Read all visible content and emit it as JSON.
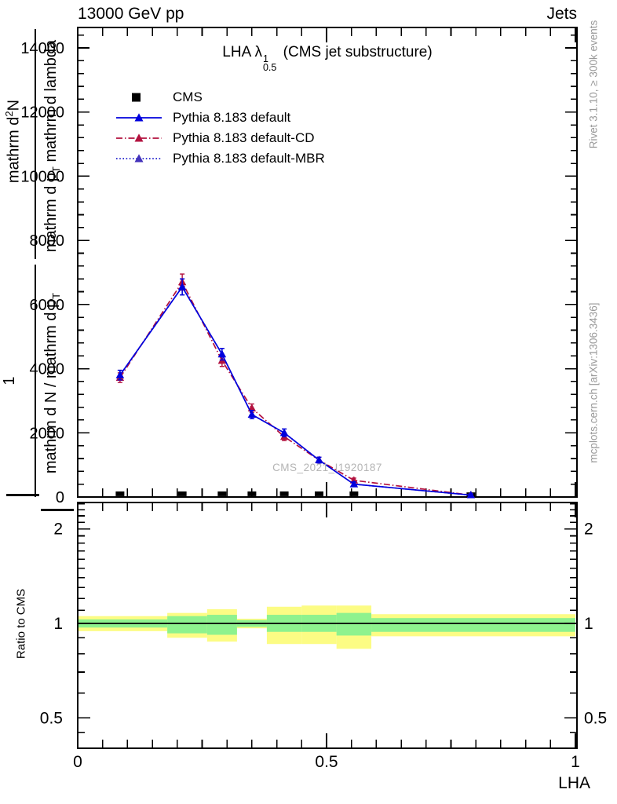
{
  "header": {
    "left": "13000 GeV pp",
    "right": "Jets"
  },
  "plot": {
    "title": {
      "prefix": "LHA λ",
      "sup": "1",
      "sub": "0.5",
      "suffix": "(CMS jet substructure)"
    },
    "watermark": "CMS_2021_I1920187",
    "side_top": "Rivet 3.1.10, ≥ 300k events",
    "side_bottom": "mcplots.cern.ch [arXiv:1306.3436]",
    "xlabel": "LHA",
    "ratio_ylabel": "Ratio to CMS",
    "ylabel": {
      "num1": "1",
      "den1_main": "mathrm d N / mathrm d p",
      "den1_sub": "T",
      "num2_pre": "mathrm d",
      "num2_sup": "2",
      "num2_post": "N",
      "den2_p1": "mathrm d p",
      "den2_sub": "T",
      "den2_p2": " mathrm d lambda"
    }
  },
  "chart_data": [
    {
      "type": "line",
      "title": "LHA lambda^1_0.5 (CMS jet substructure)",
      "xlabel": "LHA",
      "xlim": [
        0,
        1
      ],
      "ylim": [
        0,
        14640
      ],
      "yticks": [
        0,
        2000,
        4000,
        6000,
        8000,
        10000,
        12000,
        14000
      ],
      "y_minor_step": 400,
      "xticks": [
        0,
        0.5,
        1
      ],
      "x_minor_step": 0.05,
      "grid": false,
      "legend_position": "upper-left",
      "x": [
        0.085,
        0.21,
        0.29,
        0.35,
        0.415,
        0.485,
        0.555,
        0.79
      ],
      "series": [
        {
          "name": "CMS",
          "marker": "square",
          "color": "#000000",
          "values": [
            100,
            100,
            100,
            100,
            100,
            100,
            100,
            70
          ]
        },
        {
          "name": "Pythia 8.183 default",
          "marker": "triangle",
          "color": "#0000dd",
          "line_color": "#0000dd",
          "style": "solid",
          "values": [
            3800,
            6550,
            4450,
            2570,
            2000,
            1150,
            400,
            60
          ],
          "errors": [
            150,
            250,
            180,
            130,
            120,
            90,
            70,
            40
          ]
        },
        {
          "name": "Pythia 8.183 default-CD",
          "marker": "triangle",
          "color": "#b3123f",
          "line_color": "#b3123f",
          "style": "dashdot",
          "values": [
            3720,
            6700,
            4250,
            2770,
            1880,
            1150,
            520,
            60
          ],
          "errors": [
            150,
            250,
            180,
            130,
            120,
            90,
            70,
            40
          ]
        },
        {
          "name": "Pythia 8.183 default-MBR",
          "marker": "triangle",
          "color": "#4433bb",
          "line_color": "#2222cc",
          "style": "dotted",
          "values": [
            3800,
            6550,
            4450,
            2570,
            2000,
            1150,
            400,
            60
          ],
          "errors": [
            150,
            250,
            180,
            130,
            120,
            90,
            70,
            40
          ]
        }
      ]
    },
    {
      "type": "ratio-band",
      "ylabel": "Ratio to CMS",
      "yscale": "log",
      "ylim": [
        0.4,
        2.43
      ],
      "yticks": [
        0.5,
        1,
        2
      ],
      "ytick_labels": [
        "0.5",
        "1",
        "2"
      ],
      "y_minor": [
        0.45,
        0.6,
        0.7,
        0.8,
        0.9,
        1.1,
        1.2,
        1.3,
        1.4,
        1.5,
        1.6,
        1.7,
        1.8,
        1.9,
        2.1,
        2.2,
        2.3,
        2.4
      ],
      "xticks": [
        0,
        0.5,
        1
      ],
      "x_minor_step": 0.05,
      "reference_line": 1,
      "band_colors": {
        "yellow": "#fcfc84",
        "green": "#8ef28e"
      },
      "bands": [
        {
          "x": [
            0.0,
            0.18
          ],
          "yellow": [
            0.945,
            1.055
          ],
          "green": [
            0.97,
            1.03
          ]
        },
        {
          "x": [
            0.18,
            0.26
          ],
          "yellow": [
            0.9,
            1.08
          ],
          "green": [
            0.93,
            1.055
          ]
        },
        {
          "x": [
            0.26,
            0.32
          ],
          "yellow": [
            0.875,
            1.11
          ],
          "green": [
            0.92,
            1.065
          ]
        },
        {
          "x": [
            0.32,
            0.38
          ],
          "yellow": [
            0.965,
            1.035
          ],
          "green": [
            0.975,
            1.025
          ]
        },
        {
          "x": [
            0.38,
            0.45
          ],
          "yellow": [
            0.86,
            1.13
          ],
          "green": [
            0.94,
            1.065
          ]
        },
        {
          "x": [
            0.45,
            0.52
          ],
          "yellow": [
            0.86,
            1.14
          ],
          "green": [
            0.94,
            1.065
          ]
        },
        {
          "x": [
            0.52,
            0.59
          ],
          "yellow": [
            0.83,
            1.14
          ],
          "green": [
            0.915,
            1.08
          ]
        },
        {
          "x": [
            0.59,
            1.0
          ],
          "yellow": [
            0.91,
            1.07
          ],
          "green": [
            0.94,
            1.04
          ]
        }
      ]
    }
  ]
}
